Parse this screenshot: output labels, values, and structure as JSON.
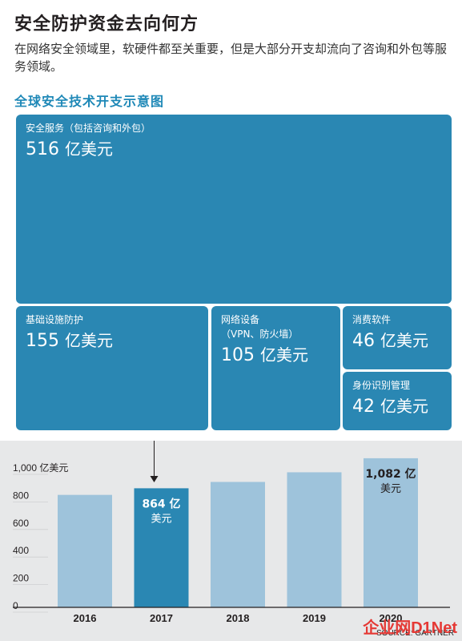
{
  "title": "安全防护资金去向何方",
  "subtitle": "在网络安全领域里，软硬件都至关重要，但是大部分开支却流向了咨询和外包等服务领域。",
  "treemap": {
    "title": "全球安全技术开支示意图",
    "tiles": [
      {
        "label": "安全服务",
        "sublabel": "（包括咨询和外包）",
        "value": "516",
        "unit": "亿美元"
      },
      {
        "label": "基础设施防护",
        "sublabel": "",
        "value": "155",
        "unit": "亿美元"
      },
      {
        "label": "网络设备",
        "sublabel": "（VPN、防火墙）",
        "value": "105",
        "unit": "亿美元"
      },
      {
        "label": "消费软件",
        "sublabel": "",
        "value": "46",
        "unit": "亿美元"
      },
      {
        "label": "身份识别管理",
        "sublabel": "",
        "value": "42",
        "unit": "亿美元"
      }
    ]
  },
  "chart_data": {
    "type": "bar",
    "categories": [
      "2016",
      "2017",
      "2018",
      "2019",
      "2020"
    ],
    "values": [
      816,
      864,
      910,
      980,
      1082
    ],
    "ylim": [
      0,
      1000
    ],
    "yticks": [
      0,
      200,
      400,
      600,
      800,
      1000
    ],
    "ytick_labels": [
      "0",
      "200",
      "400",
      "600",
      "800",
      "1,000 亿美元"
    ],
    "highlight_index": 1,
    "data_labels": [
      {
        "index": 1,
        "line1": "864 亿",
        "line2": "美元"
      },
      {
        "index": 4,
        "line1": "1,082 亿",
        "line2": "美元"
      }
    ],
    "colors": {
      "bar": "#9ec3db",
      "highlight": "#2a87b3",
      "background": "#e7e8e9"
    },
    "source": "SOURCE: GARTNER",
    "grid": false
  },
  "watermark": "企业网D1Net"
}
